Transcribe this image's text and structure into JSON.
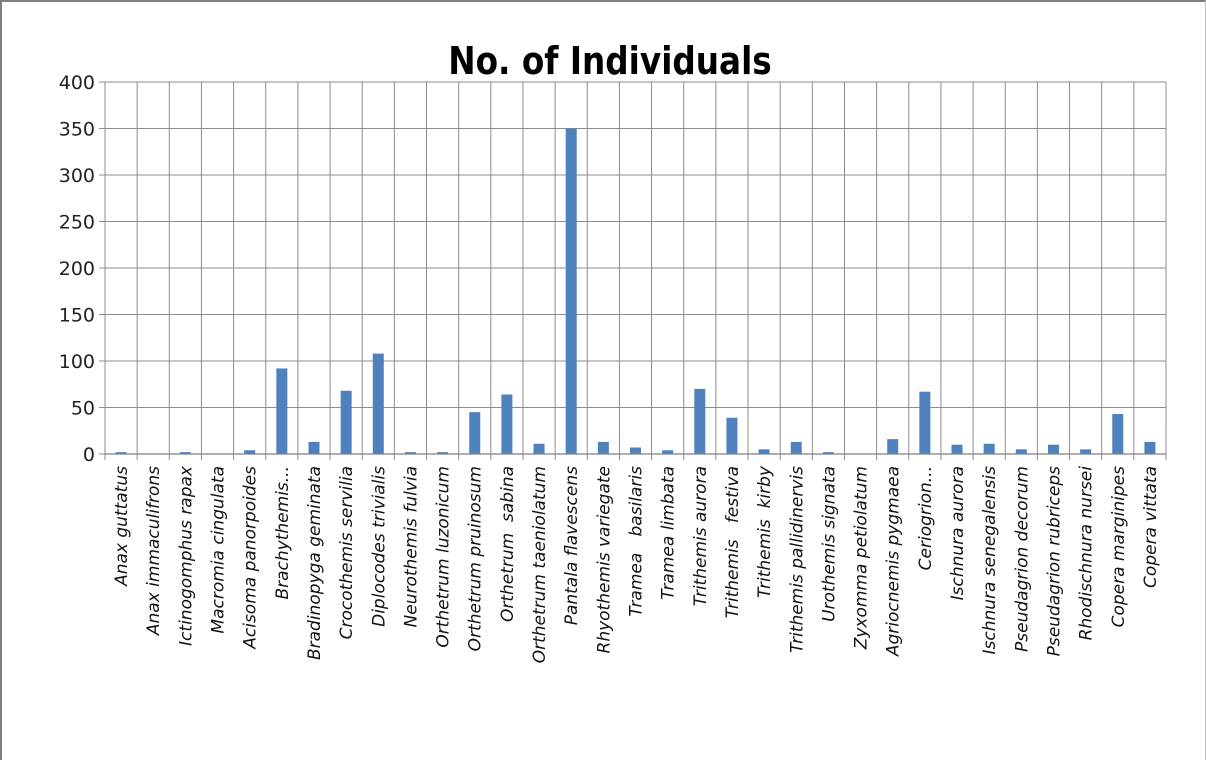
{
  "chart_data": {
    "type": "bar",
    "title": "No. of Individuals",
    "xlabel": "",
    "ylabel": "",
    "ylim": [
      0,
      400
    ],
    "yticks": [
      0,
      50,
      100,
      150,
      200,
      250,
      300,
      350,
      400
    ],
    "grid": true,
    "bar_color": "#4f81bd",
    "categories": [
      "Anax guttatus",
      "Anax immaculifrons",
      "Ictinogomphus rapax",
      "Macromia cingulata",
      "Acisoma panorpoides",
      "Brachythemis...",
      "Bradinopyga geminata",
      "Crocothemis servilia",
      "Diplocodes trivialis",
      "Neurothemis fulvia",
      "Orthetrum luzonicum",
      "Orthetrum pruinosum",
      "Orthetrum  sabina",
      "Orthetrum taeniolatum",
      "Pantala flavescens",
      "Rhyothemis variegate",
      "Tramea   basilaris",
      "Tramea limbata",
      "Trithemis aurora",
      "Trithemis   festiva",
      "Trithemis  kirby",
      "Trithemis pallidinervis",
      "Urothemis signata",
      "Zyxomma petiolatum",
      "Agriocnemis pygmaea",
      "Ceriogrion...",
      "Ischnura aurora",
      "Ischnura senegalensis",
      "Pseudagrion decorum",
      "Pseudagrion rubriceps",
      "Rhodischnura nursei",
      "Copera marginipes",
      "Copera vittata"
    ],
    "values": [
      2,
      0,
      2,
      0,
      4,
      92,
      13,
      68,
      108,
      2,
      2,
      45,
      64,
      11,
      350,
      13,
      7,
      4,
      70,
      39,
      5,
      13,
      2,
      0,
      16,
      67,
      10,
      11,
      5,
      10,
      5,
      43,
      13
    ]
  }
}
